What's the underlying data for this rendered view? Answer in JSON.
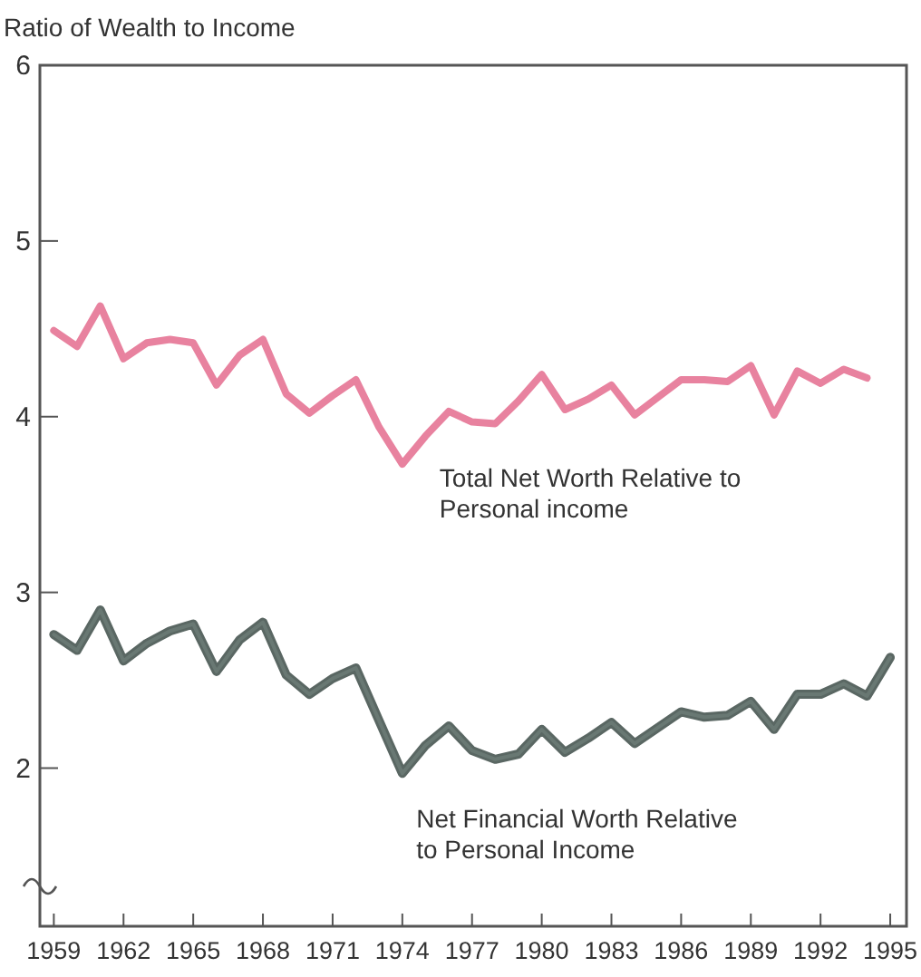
{
  "chart_data": {
    "type": "line",
    "ylabel": "Ratio of Wealth to Income",
    "x": [
      1959,
      1960,
      1961,
      1962,
      1963,
      1964,
      1965,
      1966,
      1967,
      1968,
      1969,
      1970,
      1971,
      1972,
      1973,
      1974,
      1975,
      1976,
      1977,
      1978,
      1979,
      1980,
      1981,
      1982,
      1983,
      1984,
      1985,
      1986,
      1987,
      1988,
      1989,
      1990,
      1991,
      1992,
      1993,
      1994,
      1995
    ],
    "series": [
      {
        "name": "Total Net Worth Relative to Personal income",
        "color": "#e8829f",
        "values": [
          4.49,
          4.4,
          4.63,
          4.33,
          4.42,
          4.44,
          4.42,
          4.18,
          4.35,
          4.44,
          4.13,
          4.02,
          4.12,
          4.21,
          3.94,
          3.73,
          3.89,
          4.03,
          3.97,
          3.96,
          4.09,
          4.24,
          4.04,
          4.1,
          4.18,
          4.01,
          4.11,
          4.21,
          4.21,
          4.2,
          4.29,
          4.01,
          4.26,
          4.19,
          4.27,
          4.22,
          null
        ]
      },
      {
        "name": "Net Financial Worth Relative to Personal Income",
        "color": "#6f807b",
        "values": [
          2.76,
          2.67,
          2.9,
          2.61,
          2.71,
          2.78,
          2.82,
          2.55,
          2.73,
          2.83,
          2.53,
          2.42,
          2.51,
          2.57,
          2.27,
          1.97,
          2.13,
          2.24,
          2.1,
          2.05,
          2.08,
          2.22,
          2.09,
          2.17,
          2.26,
          2.14,
          2.23,
          2.32,
          2.29,
          2.3,
          2.38,
          2.22,
          2.42,
          2.42,
          2.48,
          2.41,
          2.63
        ]
      }
    ],
    "xlim": [
      1958.4,
      1995.7
    ],
    "ylim": [
      1.1,
      6
    ],
    "xticks": [
      1959,
      1962,
      1965,
      1968,
      1971,
      1974,
      1977,
      1980,
      1983,
      1986,
      1989,
      1992,
      1995
    ],
    "yticks": [
      2,
      3,
      4,
      5,
      6
    ],
    "grid": false
  }
}
